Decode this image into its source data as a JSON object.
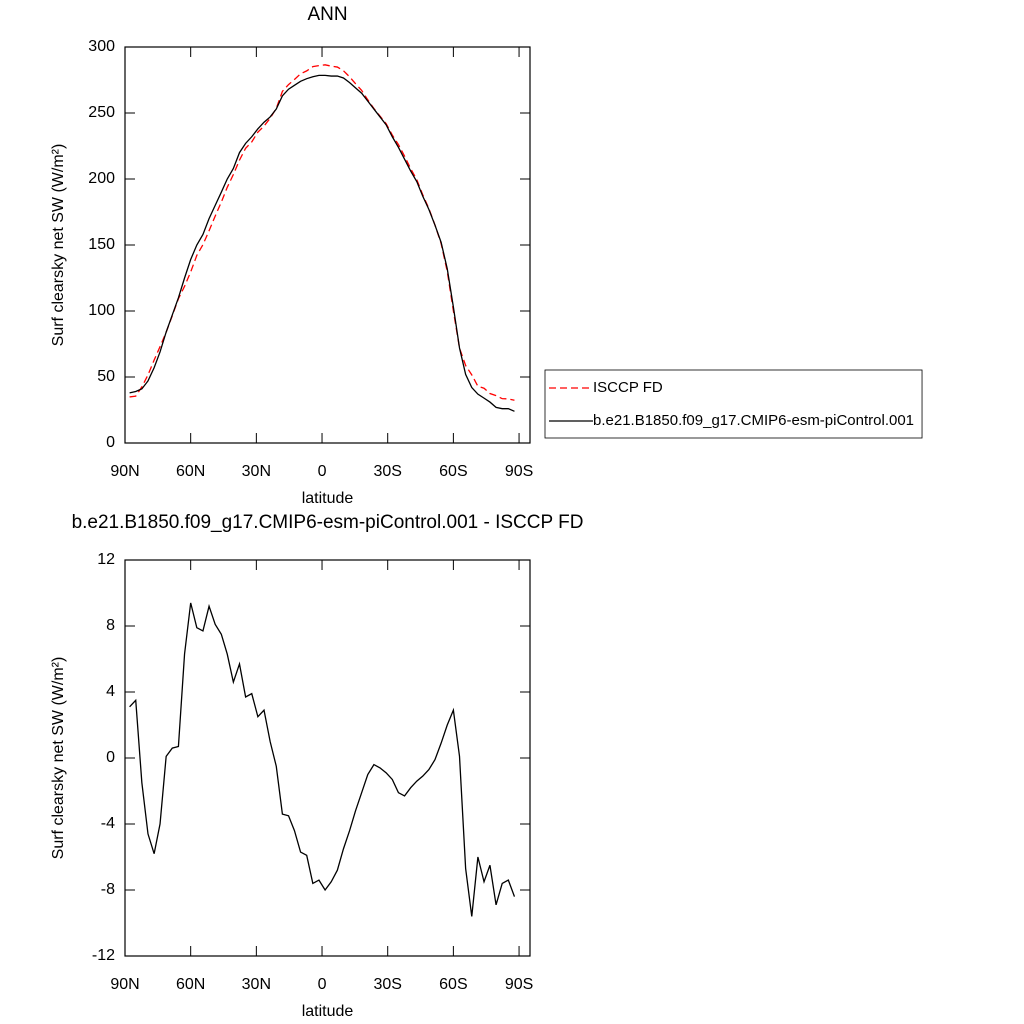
{
  "chart_data": [
    {
      "type": "line",
      "title": "ANN",
      "xlabel": "latitude",
      "ylabel": "Surf clearsky net SW (W/m²)",
      "x": [
        87.9,
        85.1,
        82.3,
        79.5,
        76.7,
        74.0,
        71.2,
        68.4,
        65.6,
        62.8,
        60.0,
        57.2,
        54.4,
        51.6,
        48.8,
        46.0,
        43.3,
        40.5,
        37.7,
        34.9,
        32.1,
        29.3,
        26.5,
        23.7,
        20.9,
        18.1,
        15.3,
        12.6,
        9.8,
        7.0,
        4.2,
        1.4,
        -1.4,
        -4.2,
        -7.0,
        -9.8,
        -12.6,
        -15.3,
        -18.1,
        -20.9,
        -23.7,
        -26.5,
        -29.3,
        -32.1,
        -34.9,
        -37.7,
        -40.5,
        -43.3,
        -46.0,
        -48.8,
        -51.6,
        -54.4,
        -57.2,
        -60.0,
        -62.8,
        -65.6,
        -68.4,
        -71.2,
        -74.0,
        -76.7,
        -79.5,
        -82.3,
        -85.1,
        -87.9
      ],
      "series": [
        {
          "name": "ISCCP FD",
          "color": "#ff0000",
          "dash": true,
          "values": [
            34.9,
            35.5,
            42.5,
            51.6,
            62.8,
            73,
            83.9,
            96.4,
            109.3,
            118.7,
            129.6,
            142.1,
            150.3,
            160.8,
            171.9,
            182.5,
            193.7,
            203.4,
            214.3,
            223.3,
            228.1,
            235.5,
            240.1,
            246,
            253.5,
            266.4,
            271.5,
            275.4,
            279.7,
            281.9,
            285.1,
            285.9,
            286.5,
            285.5,
            284.8,
            282,
            277.4,
            272.2,
            267.1,
            260,
            253.4,
            247.6,
            241.9,
            233.3,
            226.1,
            217.3,
            207.8,
            199.4,
            188.1,
            177.7,
            165.1,
            151.1,
            130,
            100.1,
            71.9,
            58.7,
            51.6,
            43,
            41.5,
            37.5,
            35.9,
            33.6,
            33.4,
            32.4
          ]
        },
        {
          "name": "b.e21.B1850.f09_g17.CMIP6-esm-piControl.001",
          "color": "#000000",
          "dash": false,
          "values": [
            38,
            39,
            41,
            47,
            57,
            69,
            84,
            97,
            110,
            125,
            139,
            150,
            158,
            170,
            180,
            190,
            200,
            208,
            220,
            227,
            232,
            238,
            243,
            247,
            253,
            263,
            268,
            271,
            274,
            276,
            277.5,
            278.5,
            278.5,
            278,
            278,
            276.5,
            273,
            269,
            265,
            259,
            253,
            247,
            241,
            232,
            224,
            215,
            206,
            198,
            187,
            177,
            165,
            152,
            132,
            103,
            72,
            52,
            42,
            37,
            34,
            31,
            27,
            26,
            26,
            24
          ]
        }
      ],
      "xlim": [
        90,
        -95
      ],
      "ylim": [
        0,
        300
      ],
      "xticks": [
        {
          "value": 90,
          "label": "90N"
        },
        {
          "value": 60,
          "label": "60N"
        },
        {
          "value": 30,
          "label": "30N"
        },
        0,
        {
          "value": -30,
          "label": "30S"
        },
        {
          "value": -60,
          "label": "60S"
        },
        {
          "value": -90,
          "label": "90S"
        }
      ],
      "yticks": [
        0,
        50,
        100,
        150,
        200,
        250,
        300
      ],
      "legend": "outside-right"
    },
    {
      "type": "line",
      "title": "b.e21.B1850.f09_g17.CMIP6-esm-piControl.001 - ISCCP FD",
      "xlabel": "latitude",
      "ylabel": "Surf clearsky net SW (W/m²)",
      "x": [
        87.9,
        85.1,
        82.3,
        79.5,
        76.7,
        74.0,
        71.2,
        68.4,
        65.6,
        62.8,
        60.0,
        57.2,
        54.4,
        51.6,
        48.8,
        46.0,
        43.3,
        40.5,
        37.7,
        34.9,
        32.1,
        29.3,
        26.5,
        23.7,
        20.9,
        18.1,
        15.3,
        12.6,
        9.8,
        7.0,
        4.2,
        1.4,
        -1.4,
        -4.2,
        -7.0,
        -9.8,
        -12.6,
        -15.3,
        -18.1,
        -20.9,
        -23.7,
        -26.5,
        -29.3,
        -32.1,
        -34.9,
        -37.7,
        -40.5,
        -43.3,
        -46.0,
        -48.8,
        -51.6,
        -54.4,
        -57.2,
        -60.0,
        -62.8,
        -65.6,
        -68.4,
        -71.2,
        -74.0,
        -76.7,
        -79.5,
        -82.3,
        -85.1,
        -87.9
      ],
      "series": [
        {
          "color": "#000000",
          "dash": false,
          "values": [
            3.1,
            3.5,
            -1.5,
            -4.6,
            -5.8,
            -4,
            0.1,
            0.6,
            0.7,
            6.3,
            9.4,
            7.9,
            7.7,
            9.2,
            8.1,
            7.5,
            6.3,
            4.6,
            5.7,
            3.7,
            3.9,
            2.5,
            2.9,
            1,
            -0.5,
            -3.4,
            -3.5,
            -4.4,
            -5.7,
            -5.9,
            -7.6,
            -7.4,
            -8,
            -7.5,
            -6.8,
            -5.5,
            -4.4,
            -3.2,
            -2.1,
            -1,
            -0.4,
            -0.6,
            -0.9,
            -1.3,
            -2.1,
            -2.3,
            -1.8,
            -1.4,
            -1.1,
            -0.7,
            -0.1,
            0.9,
            2,
            2.9,
            0.1,
            -6.7,
            -9.6,
            -6,
            -7.5,
            -6.5,
            -8.9,
            -7.6,
            -7.4,
            -8.4
          ]
        }
      ],
      "xlim": [
        90,
        -95
      ],
      "ylim": [
        -12,
        12
      ],
      "xticks": [
        {
          "value": 90,
          "label": "90N"
        },
        {
          "value": 60,
          "label": "60N"
        },
        {
          "value": 30,
          "label": "30N"
        },
        0,
        {
          "value": -30,
          "label": "30S"
        },
        {
          "value": -60,
          "label": "60S"
        },
        {
          "value": -90,
          "label": "90S"
        }
      ],
      "yticks": [
        -12,
        -8,
        -4,
        0,
        4,
        8,
        12
      ]
    }
  ]
}
